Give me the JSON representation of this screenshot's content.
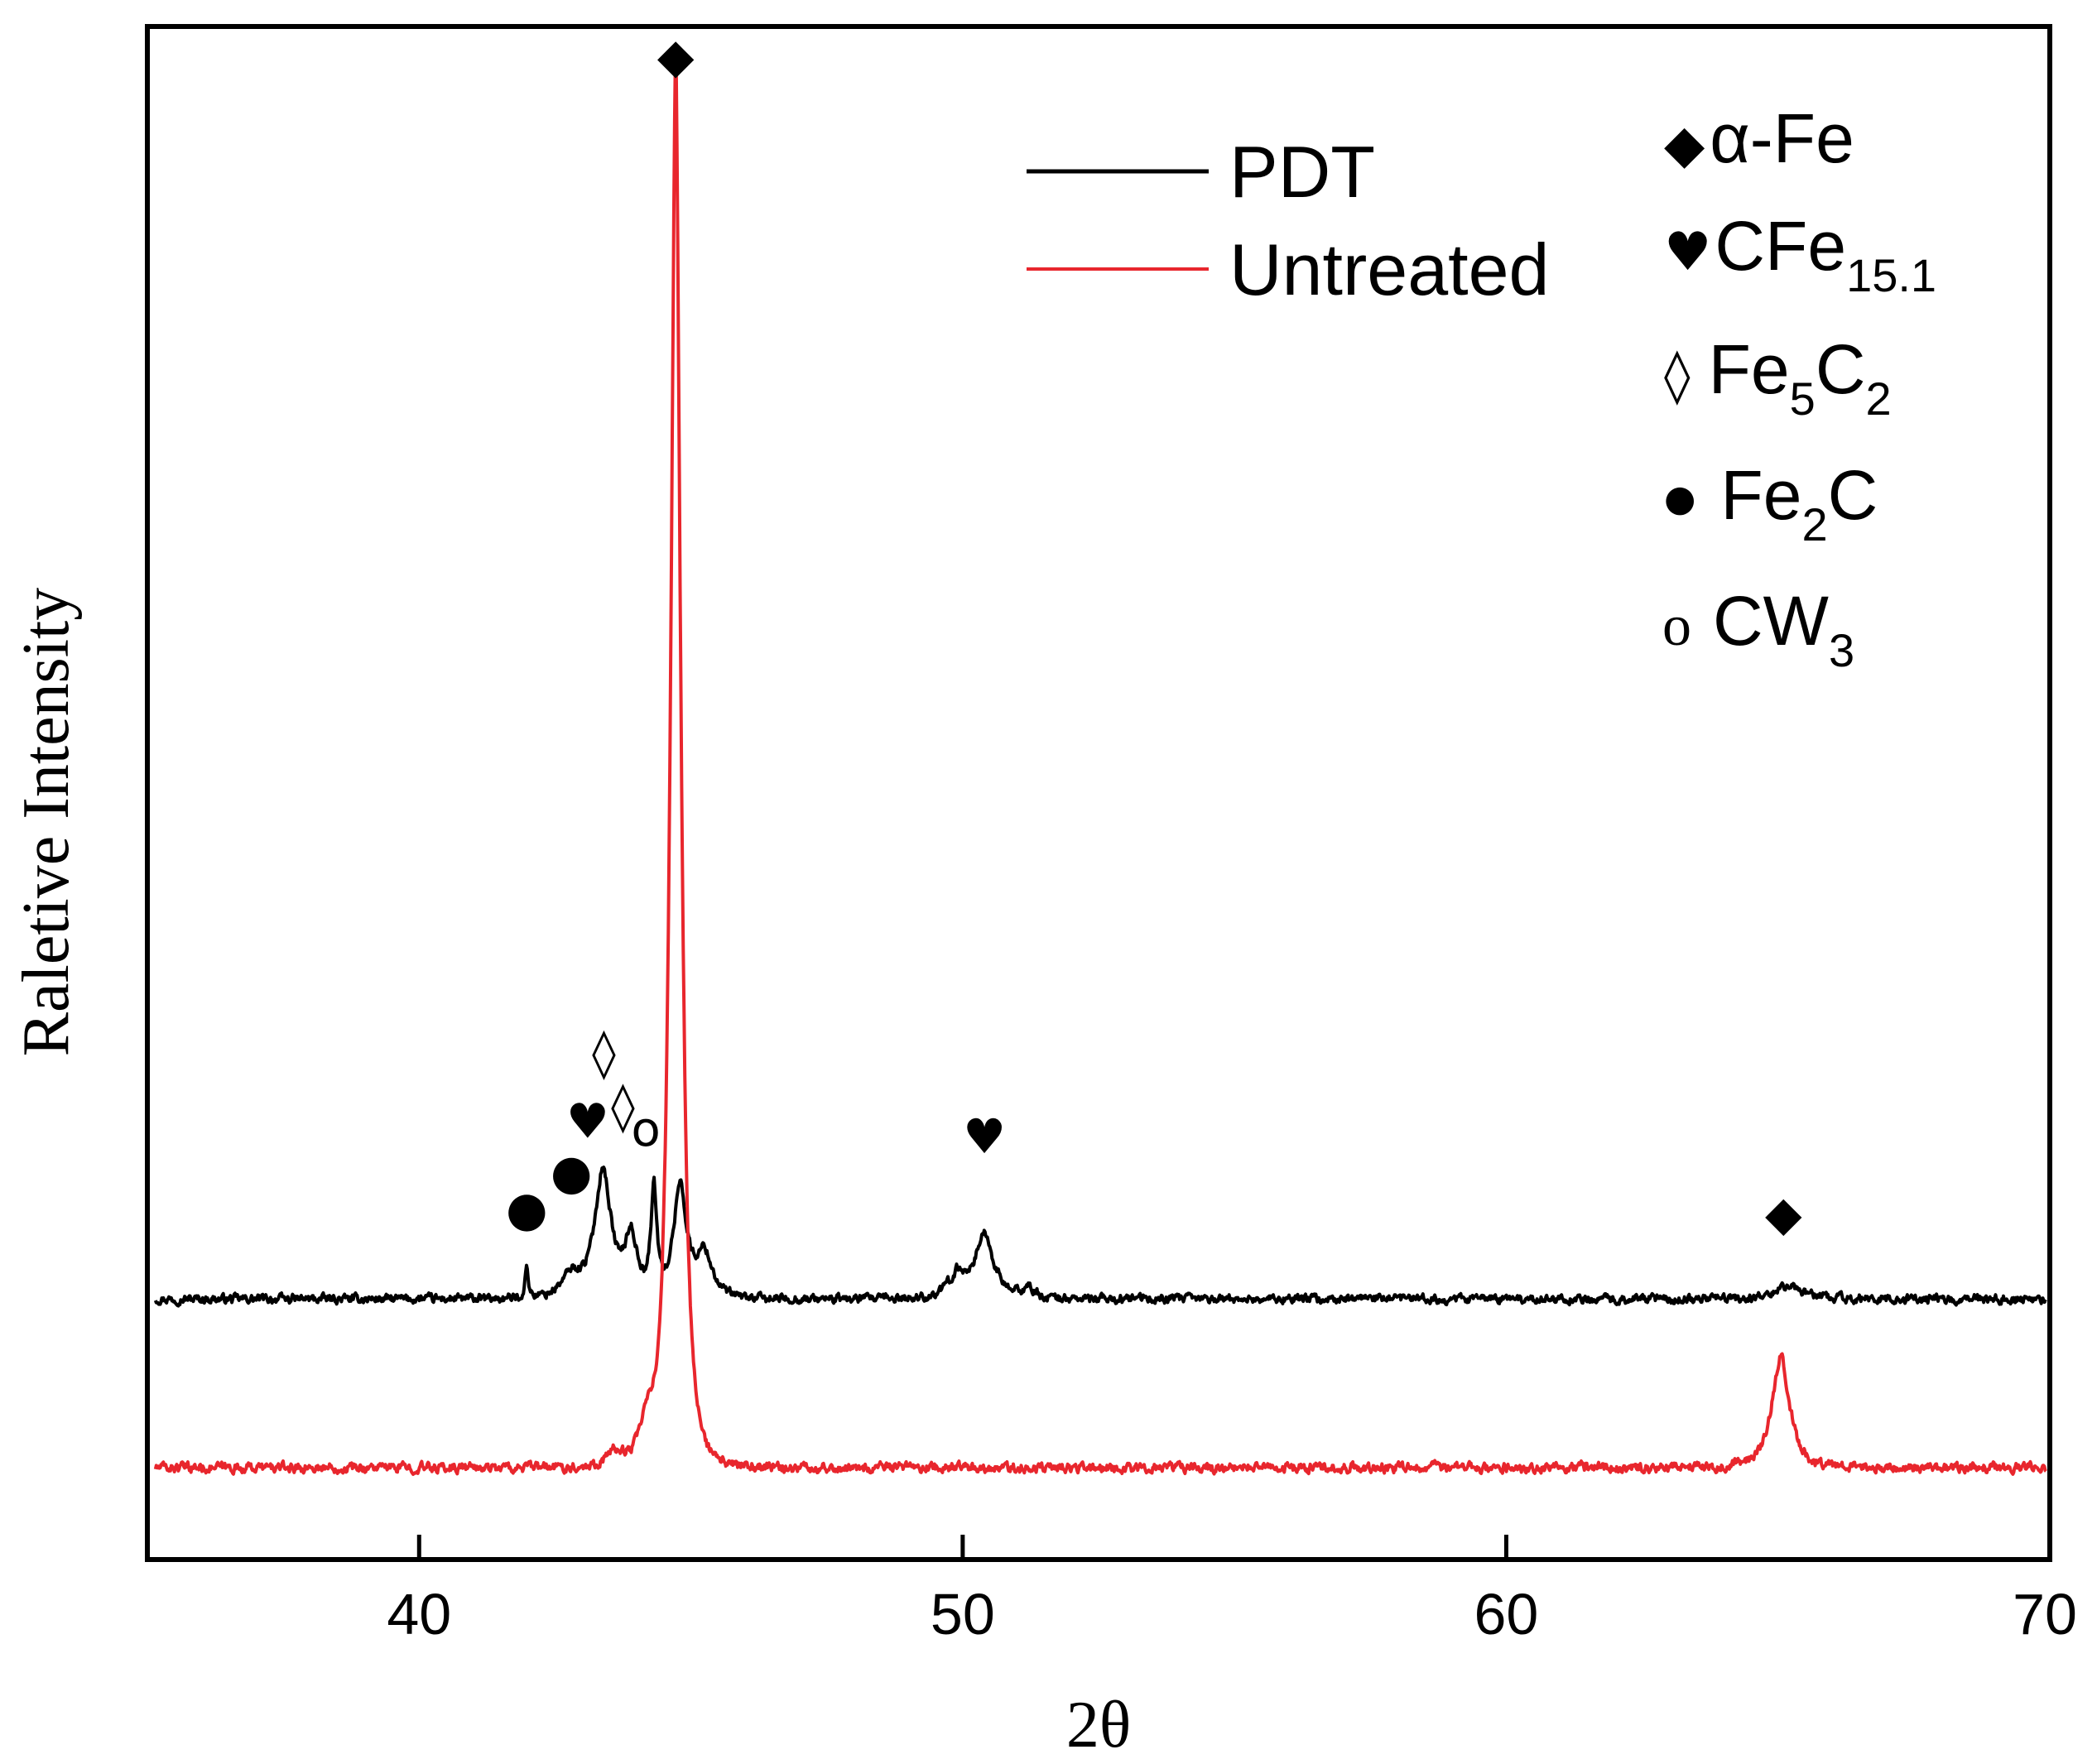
{
  "chart_data": {
    "type": "line",
    "title": "",
    "xlabel": "2θ",
    "ylabel": "Raletive Intensity",
    "xlim": [
      35,
      70
    ],
    "ylim": [
      0,
      100
    ],
    "x_ticks": [
      40,
      50,
      60,
      70
    ],
    "y_ticks_shown": false,
    "grid": false,
    "legend": {
      "placement": "top-center",
      "entries": [
        "PDT",
        "Untreated"
      ]
    },
    "series": [
      {
        "name": "PDT",
        "color": "#000000",
        "baseline": 17,
        "noise": 0.5,
        "peaks": [
          {
            "x": 41.98,
            "height": 2.0,
            "width": 0.06
          },
          {
            "x": 42.8,
            "height": 1.5,
            "width": 0.35
          },
          {
            "x": 43.38,
            "height": 8.5,
            "width": 0.28
          },
          {
            "x": 43.9,
            "height": 4.0,
            "width": 0.22
          },
          {
            "x": 44.32,
            "height": 7.0,
            "width": 0.1
          },
          {
            "x": 44.8,
            "height": 7.5,
            "width": 0.22
          },
          {
            "x": 45.25,
            "height": 3.0,
            "width": 0.28
          },
          {
            "x": 50.4,
            "height": 4.2,
            "width": 0.32
          },
          {
            "x": 49.9,
            "height": 1.5,
            "width": 0.3
          },
          {
            "x": 51.2,
            "height": 0.7,
            "width": 0.2
          },
          {
            "x": 65.2,
            "height": 0.8,
            "width": 0.5
          }
        ]
      },
      {
        "name": "Untreated",
        "color": "#e8262d",
        "baseline": 6,
        "noise": 0.55,
        "peaks": [
          {
            "x": 44.72,
            "height": 93.0,
            "width": 0.17
          },
          {
            "x": 44.2,
            "height": 2.5,
            "width": 0.28
          },
          {
            "x": 43.6,
            "height": 1.0,
            "width": 0.3
          },
          {
            "x": 65.05,
            "height": 7.5,
            "width": 0.3
          }
        ]
      }
    ],
    "phase_markers": [
      {
        "phase": "α-Fe",
        "symbol": "◆",
        "x": 44.72,
        "y": 97.0
      },
      {
        "phase": "α-Fe",
        "symbol": "◆",
        "x": 65.1,
        "y": 21.5
      },
      {
        "phase": "CFe15.1",
        "symbol": "♥",
        "x": 43.1,
        "y": 27.5
      },
      {
        "phase": "CFe15.1",
        "symbol": "♥",
        "x": 50.4,
        "y": 26.5
      },
      {
        "phase": "Fe5C2",
        "symbol": "◊",
        "x": 43.4,
        "y": 32.0
      },
      {
        "phase": "Fe5C2",
        "symbol": "◊",
        "x": 43.75,
        "y": 28.5
      },
      {
        "phase": "Fe2C",
        "symbol": "●",
        "x": 41.98,
        "y": 21.8
      },
      {
        "phase": "Fe2C",
        "symbol": "●",
        "x": 42.8,
        "y": 24.2
      },
      {
        "phase": "CW3",
        "symbol": "o",
        "x": 44.17,
        "y": 27.0
      }
    ],
    "phase_legend": [
      {
        "symbol": "◆",
        "base": "α-Fe",
        "subs": []
      },
      {
        "symbol": "♥",
        "base": "CFe",
        "subs": [
          "15.1"
        ]
      },
      {
        "symbol": "◊",
        "base": "Fe",
        "subs": [
          "5",
          "C",
          "2"
        ]
      },
      {
        "symbol": "●",
        "base": "Fe",
        "subs": [
          "2",
          "C"
        ]
      },
      {
        "symbol": "o",
        "base": "CW",
        "subs": [
          "3"
        ]
      }
    ]
  }
}
